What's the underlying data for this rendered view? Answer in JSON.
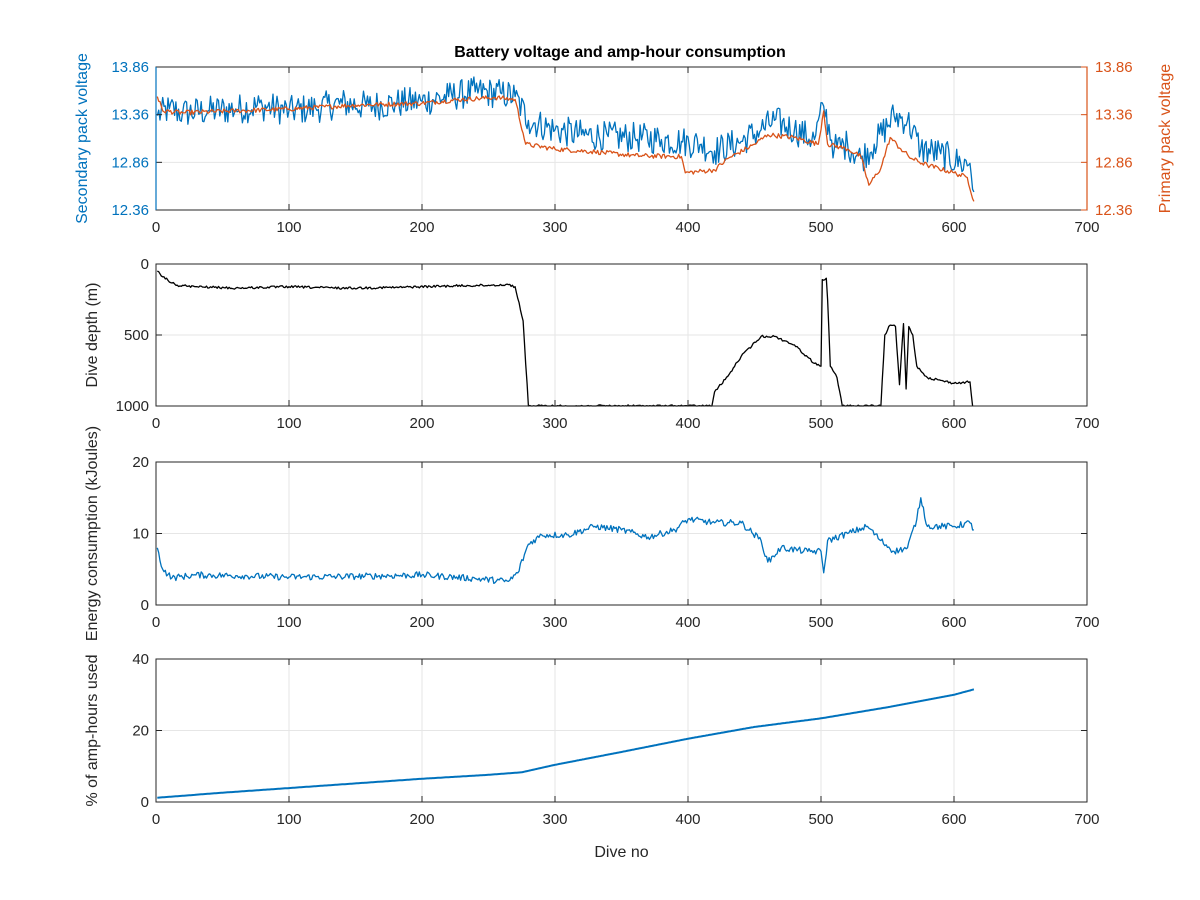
{
  "figure_title": "Battery voltage and amp-hour consumption",
  "colors": {
    "blue": "#0072BD",
    "orange": "#D95319",
    "black": "#000000",
    "axis": "#262626",
    "grid": "#e6e6e6",
    "tick_text": "#262626"
  },
  "chart_data": [
    {
      "type": "line",
      "title": "Battery voltage and amp-hour consumption",
      "xlabel": "",
      "ylabel": "Secondary pack voltage",
      "ylabel_right": "Primary pack voltage",
      "xlim": [
        0,
        700
      ],
      "ylim": [
        12.36,
        13.86
      ],
      "ylim_right": [
        12.36,
        13.86
      ],
      "grid": true,
      "x_ticks": [
        "0",
        "100",
        "200",
        "300",
        "400",
        "500",
        "600",
        "700"
      ],
      "y_ticks": [
        "12.36",
        "12.86",
        "13.36",
        "13.86"
      ],
      "y_ticks_right": [
        "12.36",
        "12.86",
        "13.36",
        "13.86"
      ],
      "series": [
        {
          "axis": "left",
          "color": "#0072BD",
          "noise": 0.16,
          "points": [
            [
              1,
              13.35
            ],
            [
              10,
              13.42
            ],
            [
              20,
              13.38
            ],
            [
              40,
              13.4
            ],
            [
              60,
              13.42
            ],
            [
              80,
              13.45
            ],
            [
              100,
              13.4
            ],
            [
              120,
              13.43
            ],
            [
              140,
              13.48
            ],
            [
              160,
              13.45
            ],
            [
              180,
              13.48
            ],
            [
              200,
              13.5
            ],
            [
              220,
              13.55
            ],
            [
              240,
              13.6
            ],
            [
              260,
              13.58
            ],
            [
              270,
              13.55
            ],
            [
              280,
              13.3
            ],
            [
              300,
              13.2
            ],
            [
              320,
              13.15
            ],
            [
              340,
              13.13
            ],
            [
              360,
              13.12
            ],
            [
              380,
              13.1
            ],
            [
              395,
              13.08
            ],
            [
              410,
              13.05
            ],
            [
              420,
              12.98
            ],
            [
              440,
              13.08
            ],
            [
              455,
              13.2
            ],
            [
              465,
              13.3
            ],
            [
              480,
              13.2
            ],
            [
              495,
              13.1
            ],
            [
              502,
              13.45
            ],
            [
              510,
              13.0
            ],
            [
              520,
              13.05
            ],
            [
              530,
              12.9
            ],
            [
              540,
              13.05
            ],
            [
              555,
              13.35
            ],
            [
              565,
              13.3
            ],
            [
              575,
              13.0
            ],
            [
              590,
              12.95
            ],
            [
              605,
              12.85
            ],
            [
              612,
              12.85
            ],
            [
              615,
              12.55
            ]
          ]
        },
        {
          "axis": "right",
          "color": "#D95319",
          "noise": 0.025,
          "points": [
            [
              1,
              13.55
            ],
            [
              5,
              13.4
            ],
            [
              20,
              13.38
            ],
            [
              60,
              13.4
            ],
            [
              100,
              13.42
            ],
            [
              150,
              13.46
            ],
            [
              200,
              13.48
            ],
            [
              230,
              13.52
            ],
            [
              255,
              13.54
            ],
            [
              270,
              13.52
            ],
            [
              278,
              13.05
            ],
            [
              300,
              13.0
            ],
            [
              330,
              12.97
            ],
            [
              360,
              12.93
            ],
            [
              395,
              12.92
            ],
            [
              398,
              12.75
            ],
            [
              420,
              12.78
            ],
            [
              430,
              12.9
            ],
            [
              450,
              13.05
            ],
            [
              460,
              13.15
            ],
            [
              480,
              13.12
            ],
            [
              498,
              13.05
            ],
            [
              502,
              13.4
            ],
            [
              505,
              13.05
            ],
            [
              520,
              13.0
            ],
            [
              530,
              12.92
            ],
            [
              536,
              12.62
            ],
            [
              545,
              12.8
            ],
            [
              552,
              13.12
            ],
            [
              560,
              13.0
            ],
            [
              568,
              12.9
            ],
            [
              580,
              12.83
            ],
            [
              600,
              12.75
            ],
            [
              610,
              12.7
            ],
            [
              615,
              12.45
            ]
          ]
        }
      ]
    },
    {
      "type": "line",
      "xlabel": "",
      "ylabel": "Dive depth (m)",
      "xlim": [
        0,
        700
      ],
      "ylim": [
        0,
        1000
      ],
      "y_reversed": true,
      "grid": true,
      "x_ticks": [
        "0",
        "100",
        "200",
        "300",
        "400",
        "500",
        "600",
        "700"
      ],
      "y_ticks": [
        "0",
        "500",
        "1000"
      ],
      "series": [
        {
          "color": "#000000",
          "noise": 8,
          "points": [
            [
              1,
              50
            ],
            [
              5,
              90
            ],
            [
              15,
              150
            ],
            [
              30,
              160
            ],
            [
              60,
              170
            ],
            [
              100,
              160
            ],
            [
              140,
              170
            ],
            [
              180,
              165
            ],
            [
              220,
              155
            ],
            [
              250,
              150
            ],
            [
              265,
              145
            ],
            [
              270,
              160
            ],
            [
              276,
              400
            ],
            [
              280,
              1000
            ],
            [
              300,
              1000
            ],
            [
              340,
              1000
            ],
            [
              380,
              1000
            ],
            [
              410,
              1000
            ],
            [
              418,
              1000
            ],
            [
              420,
              900
            ],
            [
              430,
              790
            ],
            [
              440,
              650
            ],
            [
              455,
              510
            ],
            [
              465,
              510
            ],
            [
              480,
              570
            ],
            [
              495,
              700
            ],
            [
              500,
              720
            ],
            [
              501,
              110
            ],
            [
              504,
              100
            ],
            [
              505,
              250
            ],
            [
              507,
              720
            ],
            [
              512,
              800
            ],
            [
              516,
              1000
            ],
            [
              540,
              1000
            ],
            [
              545,
              1000
            ],
            [
              548,
              500
            ],
            [
              552,
              430
            ],
            [
              556,
              440
            ],
            [
              559,
              850
            ],
            [
              562,
              420
            ],
            [
              564,
              880
            ],
            [
              566,
              440
            ],
            [
              569,
              500
            ],
            [
              572,
              720
            ],
            [
              580,
              800
            ],
            [
              590,
              820
            ],
            [
              600,
              840
            ],
            [
              612,
              830
            ],
            [
              614,
              1000
            ]
          ]
        }
      ]
    },
    {
      "type": "line",
      "xlabel": "",
      "ylabel": "Energy consumption (kJoules)",
      "xlim": [
        0,
        700
      ],
      "ylim": [
        0,
        20
      ],
      "grid": true,
      "x_ticks": [
        "0",
        "100",
        "200",
        "300",
        "400",
        "500",
        "600",
        "700"
      ],
      "y_ticks": [
        "0",
        "10",
        "20"
      ],
      "series": [
        {
          "color": "#0072BD",
          "noise": 0.45,
          "points": [
            [
              1,
              8
            ],
            [
              5,
              5
            ],
            [
              12,
              3.8
            ],
            [
              30,
              4.2
            ],
            [
              60,
              4.1
            ],
            [
              100,
              3.9
            ],
            [
              150,
              4.0
            ],
            [
              200,
              4.2
            ],
            [
              240,
              3.7
            ],
            [
              265,
              3.3
            ],
            [
              272,
              4.5
            ],
            [
              280,
              8.5
            ],
            [
              290,
              9.8
            ],
            [
              310,
              9.8
            ],
            [
              330,
              11.0
            ],
            [
              350,
              10.5
            ],
            [
              370,
              9.5
            ],
            [
              390,
              10.5
            ],
            [
              400,
              12.0
            ],
            [
              420,
              11.5
            ],
            [
              440,
              11.5
            ],
            [
              455,
              9.0
            ],
            [
              460,
              6.0
            ],
            [
              470,
              8.0
            ],
            [
              490,
              7.5
            ],
            [
              500,
              7.5
            ],
            [
              502,
              4.5
            ],
            [
              505,
              9.0
            ],
            [
              520,
              10.0
            ],
            [
              535,
              11.0
            ],
            [
              545,
              9.0
            ],
            [
              555,
              7.5
            ],
            [
              565,
              8.0
            ],
            [
              572,
              12.0
            ],
            [
              575,
              15.0
            ],
            [
              580,
              11.0
            ],
            [
              600,
              11.0
            ],
            [
              612,
              11.5
            ],
            [
              615,
              10.5
            ]
          ]
        }
      ]
    },
    {
      "type": "line",
      "xlabel": "Dive no",
      "ylabel": "% of amp-hours used",
      "xlim": [
        0,
        700
      ],
      "ylim": [
        0,
        40
      ],
      "grid": true,
      "x_ticks": [
        "0",
        "100",
        "200",
        "300",
        "400",
        "500",
        "600",
        "700"
      ],
      "y_ticks": [
        "0",
        "20",
        "40"
      ],
      "series": [
        {
          "color": "#0072BD",
          "noise": 0,
          "points": [
            [
              1,
              1.2
            ],
            [
              50,
              2.6
            ],
            [
              100,
              3.9
            ],
            [
              150,
              5.2
            ],
            [
              200,
              6.5
            ],
            [
              250,
              7.6
            ],
            [
              275,
              8.3
            ],
            [
              300,
              10.4
            ],
            [
              350,
              14.0
            ],
            [
              400,
              17.7
            ],
            [
              450,
              21.0
            ],
            [
              500,
              23.4
            ],
            [
              550,
              26.5
            ],
            [
              600,
              30.0
            ],
            [
              615,
              31.5
            ]
          ]
        }
      ]
    }
  ]
}
